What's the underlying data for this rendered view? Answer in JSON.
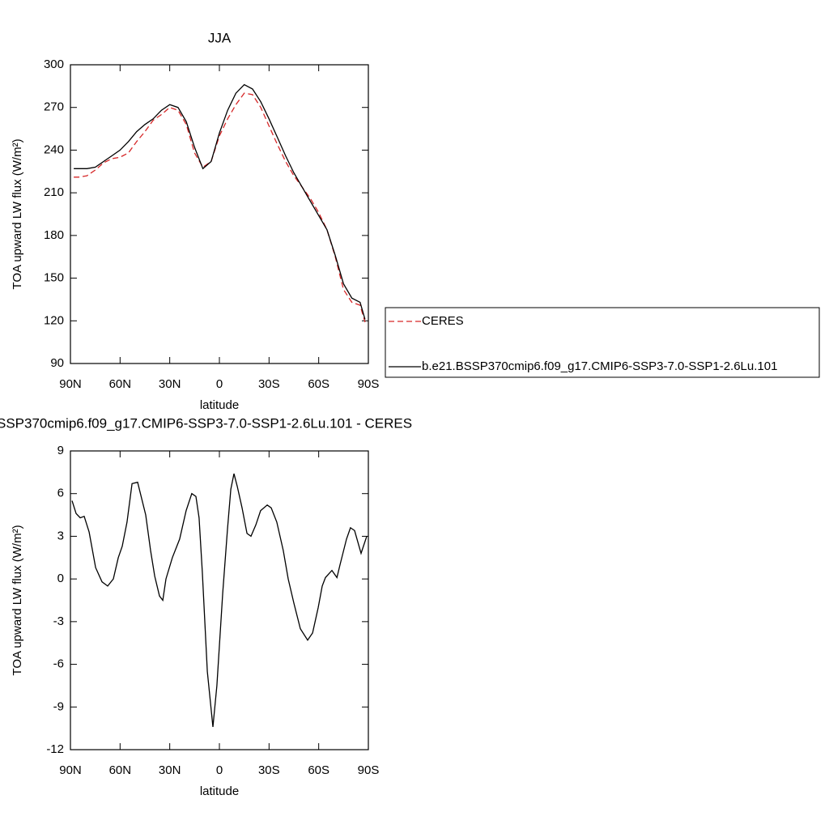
{
  "chart_data": [
    {
      "type": "line",
      "title": "JJA",
      "xlabel": "latitude",
      "ylabel": "TOA upward LW flux (W/m²)",
      "xlim": [
        90,
        -90
      ],
      "xticks": [
        {
          "value": 90,
          "label": "90N"
        },
        {
          "value": 60,
          "label": "60N"
        },
        {
          "value": 30,
          "label": "30N"
        },
        0,
        {
          "value": -30,
          "label": "30S"
        },
        {
          "value": -60,
          "label": "60S"
        },
        {
          "value": -90,
          "label": "90S"
        }
      ],
      "ylim": [
        90,
        300
      ],
      "yticks": [
        90,
        120,
        150,
        180,
        210,
        240,
        270,
        300
      ],
      "x": [
        88,
        85,
        80,
        75,
        70,
        65,
        60,
        55,
        50,
        45,
        40,
        35,
        30,
        25,
        20,
        15,
        10,
        5,
        0,
        -5,
        -10,
        -15,
        -20,
        -25,
        -30,
        -35,
        -40,
        -45,
        -50,
        -55,
        -60,
        -65,
        -70,
        -75,
        -80,
        -85,
        -88
      ],
      "legend": "right",
      "series": [
        {
          "name": "CERES",
          "color": "#d62728",
          "dash": true,
          "values": [
            221,
            221,
            222,
            226,
            231,
            234,
            235,
            238,
            246,
            253,
            261,
            265,
            270,
            268,
            258,
            238,
            228,
            232,
            250,
            262,
            272,
            280,
            279,
            270,
            257,
            244,
            232,
            222,
            214,
            206,
            196,
            184,
            165,
            142,
            133,
            131,
            119
          ]
        },
        {
          "name": "b.e21.BSSP370cmip6.f09_g17.CMIP6-SSP3-7.0-SSP1-2.6Lu.101",
          "color": "#000000",
          "dash": false,
          "values": [
            227,
            227,
            227,
            228,
            232,
            236,
            240,
            246,
            253,
            258,
            262,
            268,
            272,
            270,
            260,
            242,
            227,
            232,
            252,
            268,
            280,
            286,
            283,
            274,
            262,
            249,
            236,
            224,
            214,
            204,
            194,
            184,
            166,
            146,
            136,
            133,
            121
          ]
        }
      ]
    },
    {
      "type": "line",
      "title": "SSP370cmip6.f09_g17.CMIP6-SSP3-7.0-SSP1-2.6Lu.101 - CERES",
      "xlabel": "latitude",
      "ylabel": "TOA upward LW flux (W/m²)",
      "xlim": [
        90,
        -90
      ],
      "xticks": [
        {
          "value": 90,
          "label": "90N"
        },
        {
          "value": 60,
          "label": "60N"
        },
        {
          "value": 30,
          "label": "30N"
        },
        0,
        {
          "value": -30,
          "label": "30S"
        },
        {
          "value": -60,
          "label": "60S"
        },
        {
          "value": -90,
          "label": "90S"
        }
      ],
      "ylim": [
        -12,
        9
      ],
      "yticks": [
        -12,
        -9,
        -6,
        -3,
        0,
        3,
        6,
        9
      ],
      "x": [
        89.0,
        86.6,
        84.1,
        81.7,
        78.7,
        74.8,
        70.9,
        67.5,
        64.1,
        61.1,
        58.7,
        55.8,
        52.8,
        49.4,
        44.5,
        41.6,
        39.1,
        36.2,
        34.2,
        32.3,
        28.4,
        24.0,
        20.1,
        16.7,
        14.2,
        12.3,
        10.3,
        7.3,
        3.9,
        1.5,
        -2.0,
        -4.9,
        -6.9,
        -8.8,
        -10.8,
        -13.7,
        -16.7,
        -19.1,
        -22.0,
        -24.9,
        -28.9,
        -31.3,
        -34.7,
        -38.6,
        -41.6,
        -45.0,
        -48.9,
        -53.3,
        -56.3,
        -59.7,
        -62.1,
        -64.1,
        -68.0,
        -71.0,
        -72.9,
        -76.8,
        -79.2,
        -81.7,
        -85.6,
        -89.0
      ],
      "series": [
        {
          "color": "#000000",
          "dash": false,
          "values": [
            5.5,
            4.6,
            4.3,
            4.4,
            3.3,
            0.8,
            -0.2,
            -0.5,
            0,
            1.5,
            2.3,
            4,
            6.7,
            6.8,
            4.5,
            2,
            0.2,
            -1.2,
            -1.5,
            0,
            1.5,
            2.8,
            4.8,
            6,
            5.8,
            4.3,
            0.5,
            -6.5,
            -10.4,
            -7.5,
            -1,
            3.5,
            6.3,
            7.4,
            6.5,
            5,
            3.2,
            3,
            3.8,
            4.8,
            5.2,
            5,
            4,
            2,
            0,
            -1.7,
            -3.5,
            -4.3,
            -3.8,
            -2,
            -0.5,
            0.1,
            0.6,
            0.1,
            1,
            2.8,
            3.6,
            3.4,
            1.8,
            3
          ]
        }
      ]
    }
  ]
}
